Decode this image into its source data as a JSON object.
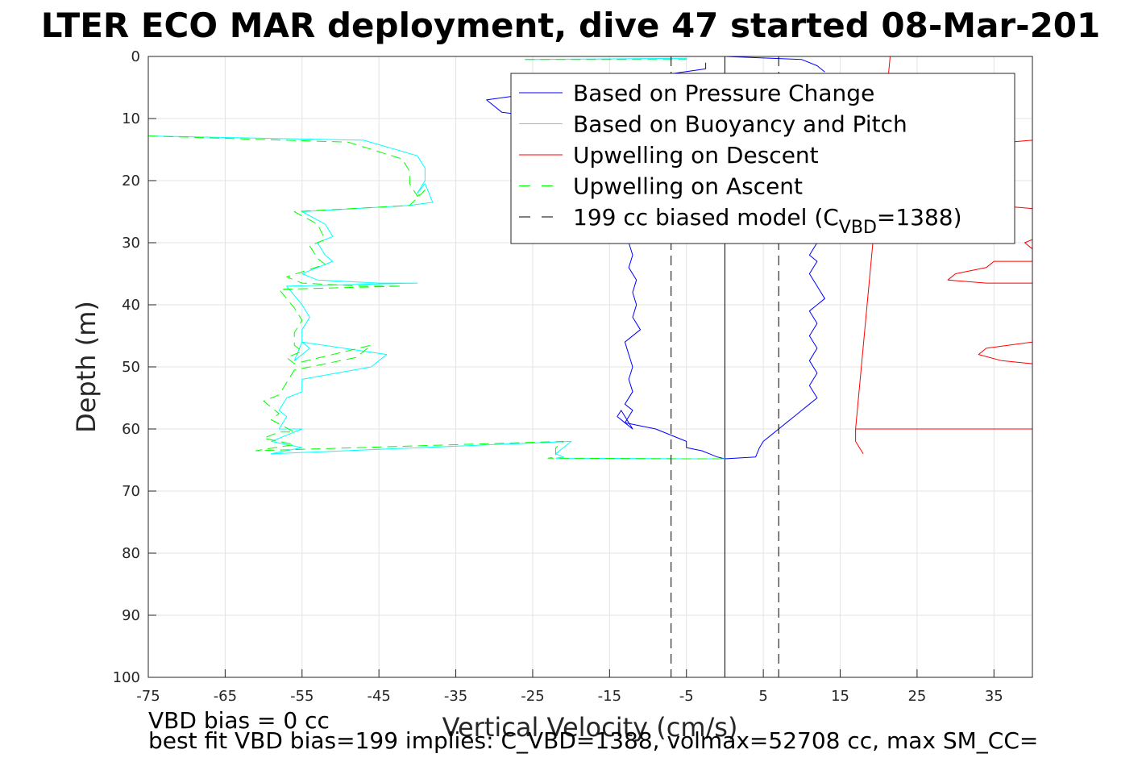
{
  "chart_data": {
    "type": "line",
    "title": "LTER ECO MAR deployment, dive 47 started 08-Mar-201",
    "xlabel": "Vertical Velocity (cm/s)",
    "ylabel": "Depth (m)",
    "xlim": [
      -75,
      40
    ],
    "ylim": [
      100,
      0
    ],
    "y_reversed": true,
    "grid": true,
    "legend_position": "top-right",
    "xticks": [
      -75,
      -65,
      -55,
      -45,
      -35,
      -25,
      -15,
      -5,
      5,
      15,
      25,
      35
    ],
    "yticks": [
      0,
      10,
      20,
      30,
      40,
      50,
      60,
      70,
      80,
      90,
      100
    ],
    "series": [
      {
        "name": "Based on Pressure Change",
        "color": "#0000ff",
        "style": "solid",
        "segments": [
          {
            "x": [
              -2.5,
              -2.5,
              -31,
              -29,
              -22,
              -18
            ],
            "y": [
              1,
              2,
              7,
              9,
              10,
              11
            ]
          },
          {
            "x": [
              -12.5,
              -12,
              -12.5,
              -11.5,
              -12,
              -11.5,
              -12,
              -11,
              -13,
              -12.5,
              -12,
              -12.5,
              -12,
              -13,
              -12,
              -12.5,
              -13,
              -12,
              -13.5,
              -14,
              -13,
              -9,
              -5,
              -5,
              -3,
              -2,
              -1,
              0
            ],
            "y": [
              30,
              32,
              34,
              36,
              38,
              40,
              42,
              44,
              46,
              48,
              50,
              52,
              54,
              56,
              57,
              58,
              59,
              60,
              57,
              58,
              59,
              60,
              62,
              63,
              63.5,
              64,
              64.5,
              64.8
            ]
          },
          {
            "x": [
              0,
              4,
              4.5,
              5,
              6,
              7,
              8,
              9,
              10,
              11,
              12,
              11,
              12,
              11,
              12,
              11,
              12,
              11,
              13,
              12,
              11,
              12,
              11,
              12,
              11,
              12,
              13,
              12,
              12
            ],
            "y": [
              64.8,
              64.5,
              63,
              62,
              61,
              60,
              59,
              58,
              57,
              56,
              55,
              53,
              51,
              49,
              47,
              45,
              43,
              41,
              39,
              37,
              35,
              33,
              32,
              30,
              28,
              26,
              24,
              22,
              20
            ]
          },
          {
            "x": [
              0,
              10,
              12,
              13
            ],
            "y": [
              0,
              0.5,
              1.5,
              2.5
            ]
          }
        ]
      },
      {
        "name": "Based on Buoyancy and Pitch",
        "color": "#00ffff",
        "style": "solid",
        "segments": [
          {
            "x": [
              -26,
              -5,
              -5
            ],
            "y": [
              0.5,
              0.3,
              0.5
            ]
          },
          {
            "x": [
              -75,
              -47,
              -40,
              -39,
              -39,
              -40,
              -39,
              -38,
              -41,
              -55,
              -52,
              -51,
              -53,
              -52,
              -51,
              -55,
              -53,
              -45,
              -40,
              -57,
              -55,
              -54,
              -55,
              -55,
              -54,
              -55,
              -56,
              -55,
              -44,
              -46,
              -55,
              -55,
              -57,
              -58,
              -57,
              -58,
              -55,
              -57,
              -59,
              -57,
              -55,
              -59,
              -20,
              -21,
              -22,
              -21,
              -22,
              -5,
              0
            ],
            "y": [
              12.8,
              13.5,
              16,
              18,
              20,
              22,
              20.5,
              23.5,
              24,
              25,
              27,
              29,
              30,
              32,
              33,
              35,
              36,
              36.5,
              36.5,
              37,
              40,
              42,
              44,
              46,
              47,
              48,
              49,
              46,
              48,
              50,
              52,
              54,
              55,
              57,
              58,
              60,
              60,
              61,
              62,
              62.5,
              63,
              64,
              62,
              63,
              64,
              64.5,
              64.7,
              64.8,
              64.8
            ]
          }
        ]
      },
      {
        "name": "Upwelling on Descent",
        "color": "#ff0000",
        "style": "solid",
        "segments": [
          {
            "x": [
              21.5,
              17,
              17,
              17.5,
              18
            ],
            "y": [
              0,
              60,
              62,
              63,
              64
            ]
          },
          {
            "x": [
              17,
              40
            ],
            "y": [
              60,
              60
            ]
          },
          {
            "x": [
              40,
              34,
              33,
              36,
              40
            ],
            "y": [
              46,
              47,
              48,
              49,
              49.5
            ]
          },
          {
            "x": [
              40,
              34,
              29,
              30,
              34,
              35,
              40
            ],
            "y": [
              36.5,
              36.5,
              36,
              35,
              34,
              33,
              33
            ]
          },
          {
            "x": [
              40,
              39,
              40
            ],
            "y": [
              29.5,
              30,
              31
            ]
          },
          {
            "x": [
              40,
              35
            ],
            "y": [
              13.5,
              14
            ]
          },
          {
            "x": [
              35,
              40
            ],
            "y": [
              24,
              24.5
            ]
          }
        ]
      },
      {
        "name": "Upwelling on Ascent",
        "color": "#00ff00",
        "style": "dashed",
        "segments": [
          {
            "x": [
              -26,
              -5,
              -5
            ],
            "y": [
              0.5,
              0.5,
              0.5
            ]
          },
          {
            "x": [
              -75,
              -49,
              -42,
              -41,
              -41,
              -40,
              -39,
              -41,
              -56,
              -53,
              -52,
              -54,
              -53,
              -52,
              -57,
              -55,
              -47,
              -42,
              -58,
              -56,
              -55,
              -56,
              -56,
              -55,
              -57,
              -56,
              -46,
              -48,
              -56,
              -57,
              -58,
              -60,
              -58,
              -59,
              -56,
              -58,
              -60,
              -58,
              -56,
              -61,
              -21,
              -22,
              -22,
              -22,
              -23,
              -6,
              0
            ],
            "y": [
              12.8,
              13.8,
              16.5,
              18.5,
              20.5,
              22.5,
              21.5,
              24,
              25,
              27,
              29.5,
              30.5,
              32.5,
              33.5,
              35.5,
              36.5,
              37,
              37,
              37.5,
              40.5,
              42.5,
              44.5,
              46.5,
              47.5,
              48.5,
              49.5,
              46.5,
              48.5,
              50.5,
              52.5,
              54.5,
              55.5,
              57.5,
              58.5,
              60.5,
              60.5,
              61.5,
              62,
              62.5,
              63.5,
              62,
              63,
              64,
              64.5,
              64.7,
              64.8,
              64.8
            ]
          }
        ]
      },
      {
        "name": "199 cc biased model (C_VBD=1388)",
        "color": "#000000",
        "style": "dashed",
        "segments": [
          {
            "x": [
              -7,
              -7
            ],
            "y": [
              0,
              100
            ]
          },
          {
            "x": [
              7,
              7
            ],
            "y": [
              0,
              100
            ]
          }
        ]
      }
    ],
    "reference_line": {
      "x": 0,
      "color": "#000000",
      "style": "solid"
    },
    "legend": {
      "entries": [
        {
          "label": "Based on Pressure Change",
          "color": "#0000ff",
          "style": "solid"
        },
        {
          "label": "Based on Buoyancy and Pitch",
          "color": "#00ffff",
          "style": "solid"
        },
        {
          "label": "Upwelling on Descent",
          "color": "#ff0000",
          "style": "solid"
        },
        {
          "label": "Upwelling on Ascent",
          "color": "#00ff00",
          "style": "dashed"
        },
        {
          "label": "199 cc biased model",
          "color": "#000000",
          "style": "dashed"
        }
      ],
      "last_entry_parts": {
        "prefix": "199 cc biased model (C",
        "subscript": "VBD",
        "suffix": "=1388)"
      }
    },
    "footer_lines": [
      "VBD bias = 0 cc",
      "best fit VBD bias=199 implies: C_VBD=1388, volmax=52708 cc, max SM_CC="
    ]
  }
}
